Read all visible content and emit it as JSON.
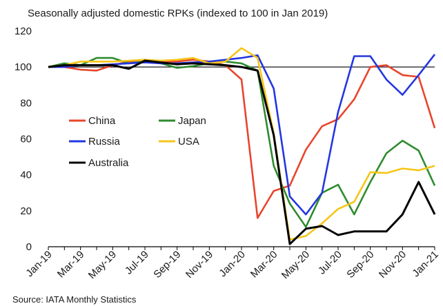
{
  "chart_data": {
    "type": "line",
    "title": "Seasonally adjusted domestic RPKs (indexed to 100 in Jan 2019)",
    "source": "Source: IATA Monthly Statistics",
    "x": [
      "Jan-19",
      "Feb-19",
      "Mar-19",
      "Apr-19",
      "May-19",
      "Jun-19",
      "Jul-19",
      "Aug-19",
      "Sep-19",
      "Oct-19",
      "Nov-19",
      "Dec-19",
      "Jan-20",
      "Feb-20",
      "Mar-20",
      "Apr-20",
      "May-20",
      "Jun-20",
      "Jul-20",
      "Aug-20",
      "Sep-20",
      "Oct-20",
      "Nov-20",
      "Dec-20",
      "Jan-21"
    ],
    "x_tick_labels": [
      "Jan-19",
      "Mar-19",
      "May-19",
      "Jul-19",
      "Sep-19",
      "Nov-19",
      "Jan-20",
      "Mar-20",
      "May-20",
      "Jul-20",
      "Sep-20",
      "Nov-20",
      "Jan-21"
    ],
    "ylim": [
      0,
      120
    ],
    "yticks": [
      0,
      20,
      40,
      60,
      80,
      100,
      120
    ],
    "reference_line": 100,
    "grid": false,
    "legend_position": "middle-left",
    "series": [
      {
        "name": "China",
        "color": "#e8452c",
        "values": [
          100,
          100,
          98.5,
          98,
          101,
          103,
          104,
          103,
          103,
          104,
          103,
          101,
          93,
          16,
          31,
          34,
          54,
          67,
          71,
          82,
          100,
          101,
          95.5,
          94.5,
          66
        ]
      },
      {
        "name": "Japan",
        "color": "#2e8b2e",
        "values": [
          100,
          102,
          101,
          105,
          105,
          102,
          103,
          102,
          99.5,
          100.5,
          102,
          103,
          102,
          98,
          45,
          24,
          11,
          30,
          34.5,
          18,
          36,
          52,
          59,
          53.5,
          34
        ]
      },
      {
        "name": "Russia",
        "color": "#2436e0",
        "values": [
          100,
          100,
          101,
          101,
          101.5,
          102,
          102.5,
          102,
          102,
          102.5,
          103,
          104,
          105,
          106.5,
          88,
          28,
          18,
          30,
          75,
          106,
          106,
          93,
          84.5,
          95.5,
          107
        ]
      },
      {
        "name": "USA",
        "color": "#f5c518",
        "values": [
          100,
          101,
          103,
          103,
          103,
          103.5,
          104,
          103.5,
          104,
          105,
          102,
          103,
          110.5,
          105,
          63,
          4,
          6,
          13,
          21,
          25,
          41.5,
          41,
          43.5,
          42.5,
          45
        ]
      },
      {
        "name": "Australia",
        "color": "#000000",
        "values": [
          100,
          101,
          101,
          101,
          101,
          99,
          103.5,
          102.5,
          101.5,
          102,
          101.5,
          101,
          100,
          98,
          62,
          1.5,
          10,
          11.5,
          6.5,
          8.5,
          8.5,
          8.5,
          18,
          36,
          18
        ]
      }
    ]
  }
}
